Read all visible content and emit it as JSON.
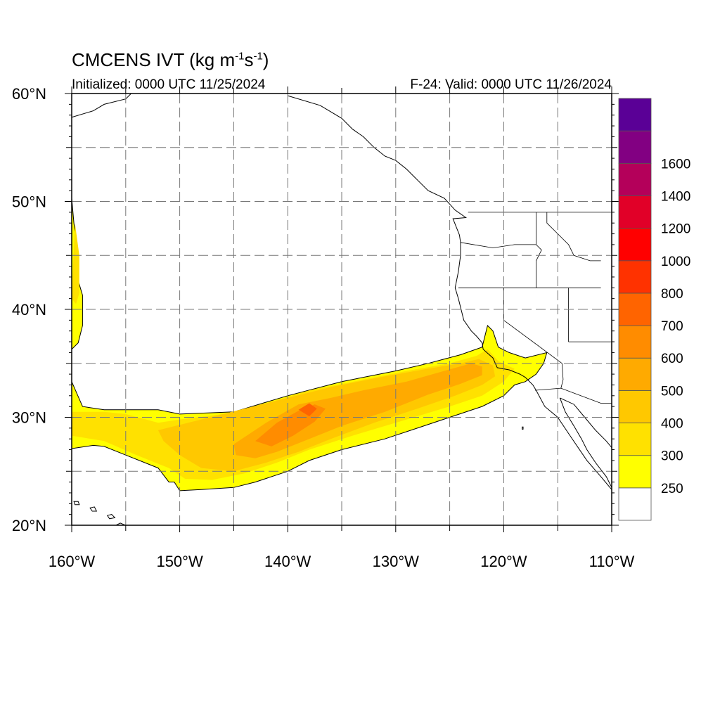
{
  "title": {
    "main": "CMCENS IVT (kg m",
    "exp1": "-1",
    "mid": "s",
    "exp2": "-1",
    "close": ")"
  },
  "subtitle_left": "Initialized: 0000 UTC 11/25/2024",
  "subtitle_right": "F-24: Valid: 0000 UTC 11/26/2024",
  "map": {
    "lat_labels": [
      {
        "lat": 60,
        "text": "60°N"
      },
      {
        "lat": 50,
        "text": "50°N"
      },
      {
        "lat": 40,
        "text": "40°N"
      },
      {
        "lat": 30,
        "text": "30°N"
      },
      {
        "lat": 20,
        "text": "20°N"
      }
    ],
    "lon_labels": [
      {
        "lon": -160,
        "text": "160°W"
      },
      {
        "lon": -150,
        "text": "150°W"
      },
      {
        "lon": -140,
        "text": "140°W"
      },
      {
        "lon": -130,
        "text": "130°W"
      },
      {
        "lon": -120,
        "text": "120°W"
      },
      {
        "lon": -110,
        "text": "110°W"
      }
    ],
    "lon_range": [
      -160,
      -110
    ],
    "lat_range": [
      20,
      60
    ],
    "grid_lines": "dashed"
  },
  "colorbar": {
    "colors": [
      "#ffffff",
      "#ffff00",
      "#ffe100",
      "#ffc800",
      "#ffaa00",
      "#ff8c00",
      "#ff6400",
      "#ff3200",
      "#ff0000",
      "#e10028",
      "#b4005a",
      "#820082",
      "#5a0096"
    ],
    "labels": [
      "250",
      "300",
      "400",
      "500",
      "600",
      "700",
      "800",
      "1000",
      "1200",
      "1400",
      "1600"
    ]
  },
  "regions": [
    {
      "name": "ivt-250-west-edge",
      "color": "#ffff00",
      "points": [
        [
          -160,
          50.3
        ],
        [
          -159.8,
          48
        ],
        [
          -159.5,
          45.5
        ],
        [
          -159.5,
          43
        ],
        [
          -159,
          41.3
        ],
        [
          -159,
          38.5
        ],
        [
          -159.4,
          36.9
        ],
        [
          -160,
          36.3
        ]
      ]
    },
    {
      "name": "ivt-250-main",
      "color": "#ffff00",
      "points": [
        [
          -160,
          33.3
        ],
        [
          -159,
          31
        ],
        [
          -157,
          30.7
        ],
        [
          -152,
          30.7
        ],
        [
          -150,
          30.3
        ],
        [
          -145,
          30.5
        ],
        [
          -140,
          32
        ],
        [
          -135,
          33.3
        ],
        [
          -130,
          34.3
        ],
        [
          -127,
          35
        ],
        [
          -124,
          35.8
        ],
        [
          -122,
          36.5
        ],
        [
          -121.5,
          38.5
        ],
        [
          -121,
          38
        ],
        [
          -120.5,
          36.5
        ],
        [
          -119.5,
          36
        ],
        [
          -118,
          35.5
        ],
        [
          -116,
          36
        ],
        [
          -116.3,
          35
        ],
        [
          -117,
          34
        ],
        [
          -118,
          33.3
        ],
        [
          -119,
          33
        ],
        [
          -120,
          32
        ],
        [
          -122,
          31
        ],
        [
          -125,
          30
        ],
        [
          -128,
          29
        ],
        [
          -131,
          28
        ],
        [
          -135,
          27
        ],
        [
          -138,
          26
        ],
        [
          -140,
          25
        ],
        [
          -143,
          24
        ],
        [
          -145,
          23.5
        ],
        [
          -148,
          23.3
        ],
        [
          -150,
          23.2
        ],
        [
          -150.5,
          24
        ],
        [
          -151,
          24
        ],
        [
          -152,
          25.3
        ],
        [
          -155,
          26.5
        ],
        [
          -157,
          27.3
        ],
        [
          -158,
          27.4
        ],
        [
          -160,
          27.1
        ]
      ]
    },
    {
      "name": "ivt-300-west",
      "color": "#ffe100",
      "points": [
        [
          -159.7,
          48
        ],
        [
          -159.3,
          45
        ],
        [
          -159.3,
          41.5
        ],
        [
          -159.6,
          40.5
        ],
        [
          -160,
          41
        ]
      ]
    },
    {
      "name": "ivt-300-main",
      "color": "#ffe100",
      "points": [
        [
          -160,
          30.5
        ],
        [
          -157,
          30.5
        ],
        [
          -155,
          30.3
        ],
        [
          -152,
          29.5
        ],
        [
          -150,
          29.8
        ],
        [
          -146,
          30.3
        ],
        [
          -142,
          31.3
        ],
        [
          -138,
          32.5
        ],
        [
          -133,
          33.5
        ],
        [
          -129,
          34.3
        ],
        [
          -125,
          35
        ],
        [
          -122.5,
          35.7
        ],
        [
          -121.5,
          36.3
        ],
        [
          -120.5,
          35.2
        ],
        [
          -119,
          34.5
        ],
        [
          -120,
          33.3
        ],
        [
          -122,
          32
        ],
        [
          -125,
          31
        ],
        [
          -129,
          29.8
        ],
        [
          -134,
          28.3
        ],
        [
          -138,
          27
        ],
        [
          -141,
          25.8
        ],
        [
          -144,
          24.8
        ],
        [
          -147,
          24.2
        ],
        [
          -149.5,
          24.3
        ],
        [
          -151,
          25.3
        ],
        [
          -154,
          26.5
        ],
        [
          -157,
          27.8
        ],
        [
          -160,
          28.3
        ]
      ]
    },
    {
      "name": "ivt-400",
      "color": "#ffc800",
      "points": [
        [
          -152,
          28.8
        ],
        [
          -148,
          29.8
        ],
        [
          -144,
          30.8
        ],
        [
          -140,
          31.8
        ],
        [
          -136,
          32.8
        ],
        [
          -131,
          33.8
        ],
        [
          -127,
          34.5
        ],
        [
          -124,
          35
        ],
        [
          -122.3,
          35.4
        ],
        [
          -121,
          34.8
        ],
        [
          -120.8,
          33.8
        ],
        [
          -122,
          33
        ],
        [
          -124.5,
          32
        ],
        [
          -128,
          30.8
        ],
        [
          -132,
          29.5
        ],
        [
          -136,
          28
        ],
        [
          -139,
          26.8
        ],
        [
          -142,
          25.8
        ],
        [
          -145,
          25
        ],
        [
          -148,
          25.3
        ],
        [
          -150,
          26.5
        ],
        [
          -151.5,
          27.8
        ]
      ]
    },
    {
      "name": "ivt-500",
      "color": "#ffaa00",
      "points": [
        [
          -145,
          27.5
        ],
        [
          -142,
          29.5
        ],
        [
          -139,
          31.2
        ],
        [
          -136,
          31.8
        ],
        [
          -133,
          32.5
        ],
        [
          -129,
          33.3
        ],
        [
          -125.5,
          34.3
        ],
        [
          -123,
          35
        ],
        [
          -122,
          34.7
        ],
        [
          -122,
          33.9
        ],
        [
          -124,
          33.1
        ],
        [
          -127,
          32.1
        ],
        [
          -131,
          30.5
        ],
        [
          -135,
          29.2
        ],
        [
          -138,
          28
        ],
        [
          -141,
          26.8
        ],
        [
          -143,
          26.2
        ],
        [
          -144.8,
          26.5
        ]
      ]
    },
    {
      "name": "ivt-600",
      "color": "#ff8c00",
      "points": [
        [
          -143,
          27.8
        ],
        [
          -141,
          29.5
        ],
        [
          -139,
          30.6
        ],
        [
          -137.5,
          31.2
        ],
        [
          -136.5,
          30.8
        ],
        [
          -137.5,
          29.6
        ],
        [
          -139.5,
          28.3
        ],
        [
          -141.5,
          27.3
        ]
      ]
    },
    {
      "name": "ivt-700",
      "color": "#ff6400",
      "points": [
        [
          -139,
          30.7
        ],
        [
          -138,
          31.3
        ],
        [
          -137.3,
          30.8
        ],
        [
          -138,
          30.1
        ]
      ]
    }
  ],
  "coastlines": [
    {
      "name": "north-america-west-coast",
      "points": [
        [
          -140,
          59.8
        ],
        [
          -137,
          58.9
        ],
        [
          -136,
          58.3
        ],
        [
          -135,
          57.7
        ],
        [
          -134,
          56.7
        ],
        [
          -133,
          56
        ],
        [
          -132,
          55
        ],
        [
          -131,
          54.2
        ],
        [
          -130,
          53.8
        ],
        [
          -129,
          53
        ],
        [
          -128,
          52
        ],
        [
          -127,
          51
        ],
        [
          -125.5,
          50.3
        ],
        [
          -124.5,
          49.2
        ],
        [
          -123.5,
          48.5
        ],
        [
          -124.7,
          48.4
        ],
        [
          -124.1,
          46.9
        ],
        [
          -124,
          46.2
        ],
        [
          -124,
          45
        ],
        [
          -124.2,
          43.5
        ],
        [
          -124.5,
          42
        ],
        [
          -124.2,
          41
        ],
        [
          -124,
          40.2
        ],
        [
          -123.7,
          39
        ],
        [
          -123,
          38
        ],
        [
          -122.5,
          37.5
        ],
        [
          -122,
          36.9
        ],
        [
          -121.9,
          36.3
        ],
        [
          -121,
          35.5
        ],
        [
          -120.6,
          34.6
        ],
        [
          -119.5,
          34.4
        ],
        [
          -118.5,
          34
        ],
        [
          -118,
          33.7
        ],
        [
          -117.3,
          33
        ],
        [
          -117,
          32.5
        ],
        [
          -116.2,
          31
        ],
        [
          -115,
          30
        ],
        [
          -114,
          28.5
        ],
        [
          -112.3,
          26
        ],
        [
          -111,
          24.5
        ],
        [
          -110,
          23.3
        ]
      ]
    },
    {
      "name": "baja-gulf-coast",
      "points": [
        [
          -114.8,
          31.8
        ],
        [
          -114.3,
          30.5
        ],
        [
          -113.5,
          29.2
        ],
        [
          -112.8,
          28
        ],
        [
          -112.3,
          27
        ],
        [
          -111.5,
          25.8
        ],
        [
          -110.5,
          24.5
        ],
        [
          -110,
          23.5
        ]
      ]
    },
    {
      "name": "mexico-mainland-coast",
      "points": [
        [
          -114.8,
          31.8
        ],
        [
          -113.5,
          31.2
        ],
        [
          -112.5,
          30
        ],
        [
          -111.5,
          28.8
        ],
        [
          -110.5,
          27.8
        ],
        [
          -110,
          27.2
        ]
      ]
    },
    {
      "name": "kodiak-alaska-coast",
      "points": [
        [
          -160,
          57.8
        ],
        [
          -158,
          58.4
        ],
        [
          -157,
          59
        ],
        [
          -155,
          59.5
        ],
        [
          -154.5,
          60
        ]
      ]
    },
    {
      "name": "hawaii-big-island",
      "closed": true,
      "points": [
        [
          -155.9,
          20
        ],
        [
          -155.5,
          20.2
        ],
        [
          -154.8,
          19.9
        ],
        [
          -155.5,
          19.5
        ]
      ]
    },
    {
      "name": "hawaii-maui",
      "closed": true,
      "points": [
        [
          -156.7,
          20.9
        ],
        [
          -156.3,
          21
        ],
        [
          -156,
          20.7
        ],
        [
          -156.5,
          20.6
        ]
      ]
    },
    {
      "name": "hawaii-oahu",
      "closed": true,
      "points": [
        [
          -158.3,
          21.6
        ],
        [
          -157.9,
          21.7
        ],
        [
          -157.7,
          21.3
        ],
        [
          -158.1,
          21.3
        ]
      ]
    },
    {
      "name": "hawaii-kauai",
      "closed": true,
      "points": [
        [
          -159.8,
          22.2
        ],
        [
          -159.4,
          22.2
        ],
        [
          -159.3,
          21.9
        ],
        [
          -159.7,
          21.9
        ]
      ]
    },
    {
      "name": "guadalupe-island",
      "closed": true,
      "points": [
        [
          -118.3,
          29.1
        ],
        [
          -118.2,
          29.1
        ],
        [
          -118.2,
          28.9
        ],
        [
          -118.3,
          28.9
        ]
      ]
    }
  ],
  "borders": [
    {
      "name": "canada-us-border",
      "points": [
        [
          -123.3,
          49
        ],
        [
          -110,
          49
        ]
      ]
    },
    {
      "name": "wa-or-border",
      "points": [
        [
          -124,
          46.2
        ],
        [
          -121,
          45.7
        ],
        [
          -119,
          46
        ],
        [
          -117,
          46
        ]
      ]
    },
    {
      "name": "wa-id-border",
      "points": [
        [
          -117,
          49
        ],
        [
          -117,
          46
        ]
      ]
    },
    {
      "name": "or-ca-nv-border",
      "points": [
        [
          -124.2,
          42
        ],
        [
          -114,
          42
        ]
      ]
    },
    {
      "name": "or-id-border",
      "points": [
        [
          -117,
          46
        ],
        [
          -116.5,
          45.5
        ],
        [
          -117,
          44.5
        ],
        [
          -117,
          42
        ]
      ]
    },
    {
      "name": "ca-nv-border",
      "points": [
        [
          -120,
          42
        ],
        [
          -120,
          39
        ],
        [
          -114.6,
          35
        ]
      ]
    },
    {
      "name": "nv-ut-border",
      "points": [
        [
          -114,
          42
        ],
        [
          -114,
          37
        ]
      ]
    },
    {
      "name": "id-ut-border",
      "points": [
        [
          -114,
          42
        ],
        [
          -111,
          42
        ]
      ]
    },
    {
      "name": "az-ut-border",
      "points": [
        [
          -114,
          37
        ],
        [
          -110,
          37
        ]
      ]
    },
    {
      "name": "ca-az-border",
      "points": [
        [
          -114.6,
          35
        ],
        [
          -114.5,
          33.5
        ],
        [
          -114.7,
          32.7
        ]
      ]
    },
    {
      "name": "us-mexico-border",
      "points": [
        [
          -117.1,
          32.5
        ],
        [
          -114.7,
          32.7
        ],
        [
          -111,
          31.3
        ],
        [
          -110,
          31.3
        ]
      ]
    },
    {
      "name": "id-mt-border",
      "points": [
        [
          -116,
          49
        ],
        [
          -116,
          48
        ],
        [
          -115,
          47
        ],
        [
          -114,
          46
        ],
        [
          -113.5,
          45
        ],
        [
          -112,
          44.5
        ],
        [
          -111,
          44.5
        ]
      ]
    }
  ]
}
